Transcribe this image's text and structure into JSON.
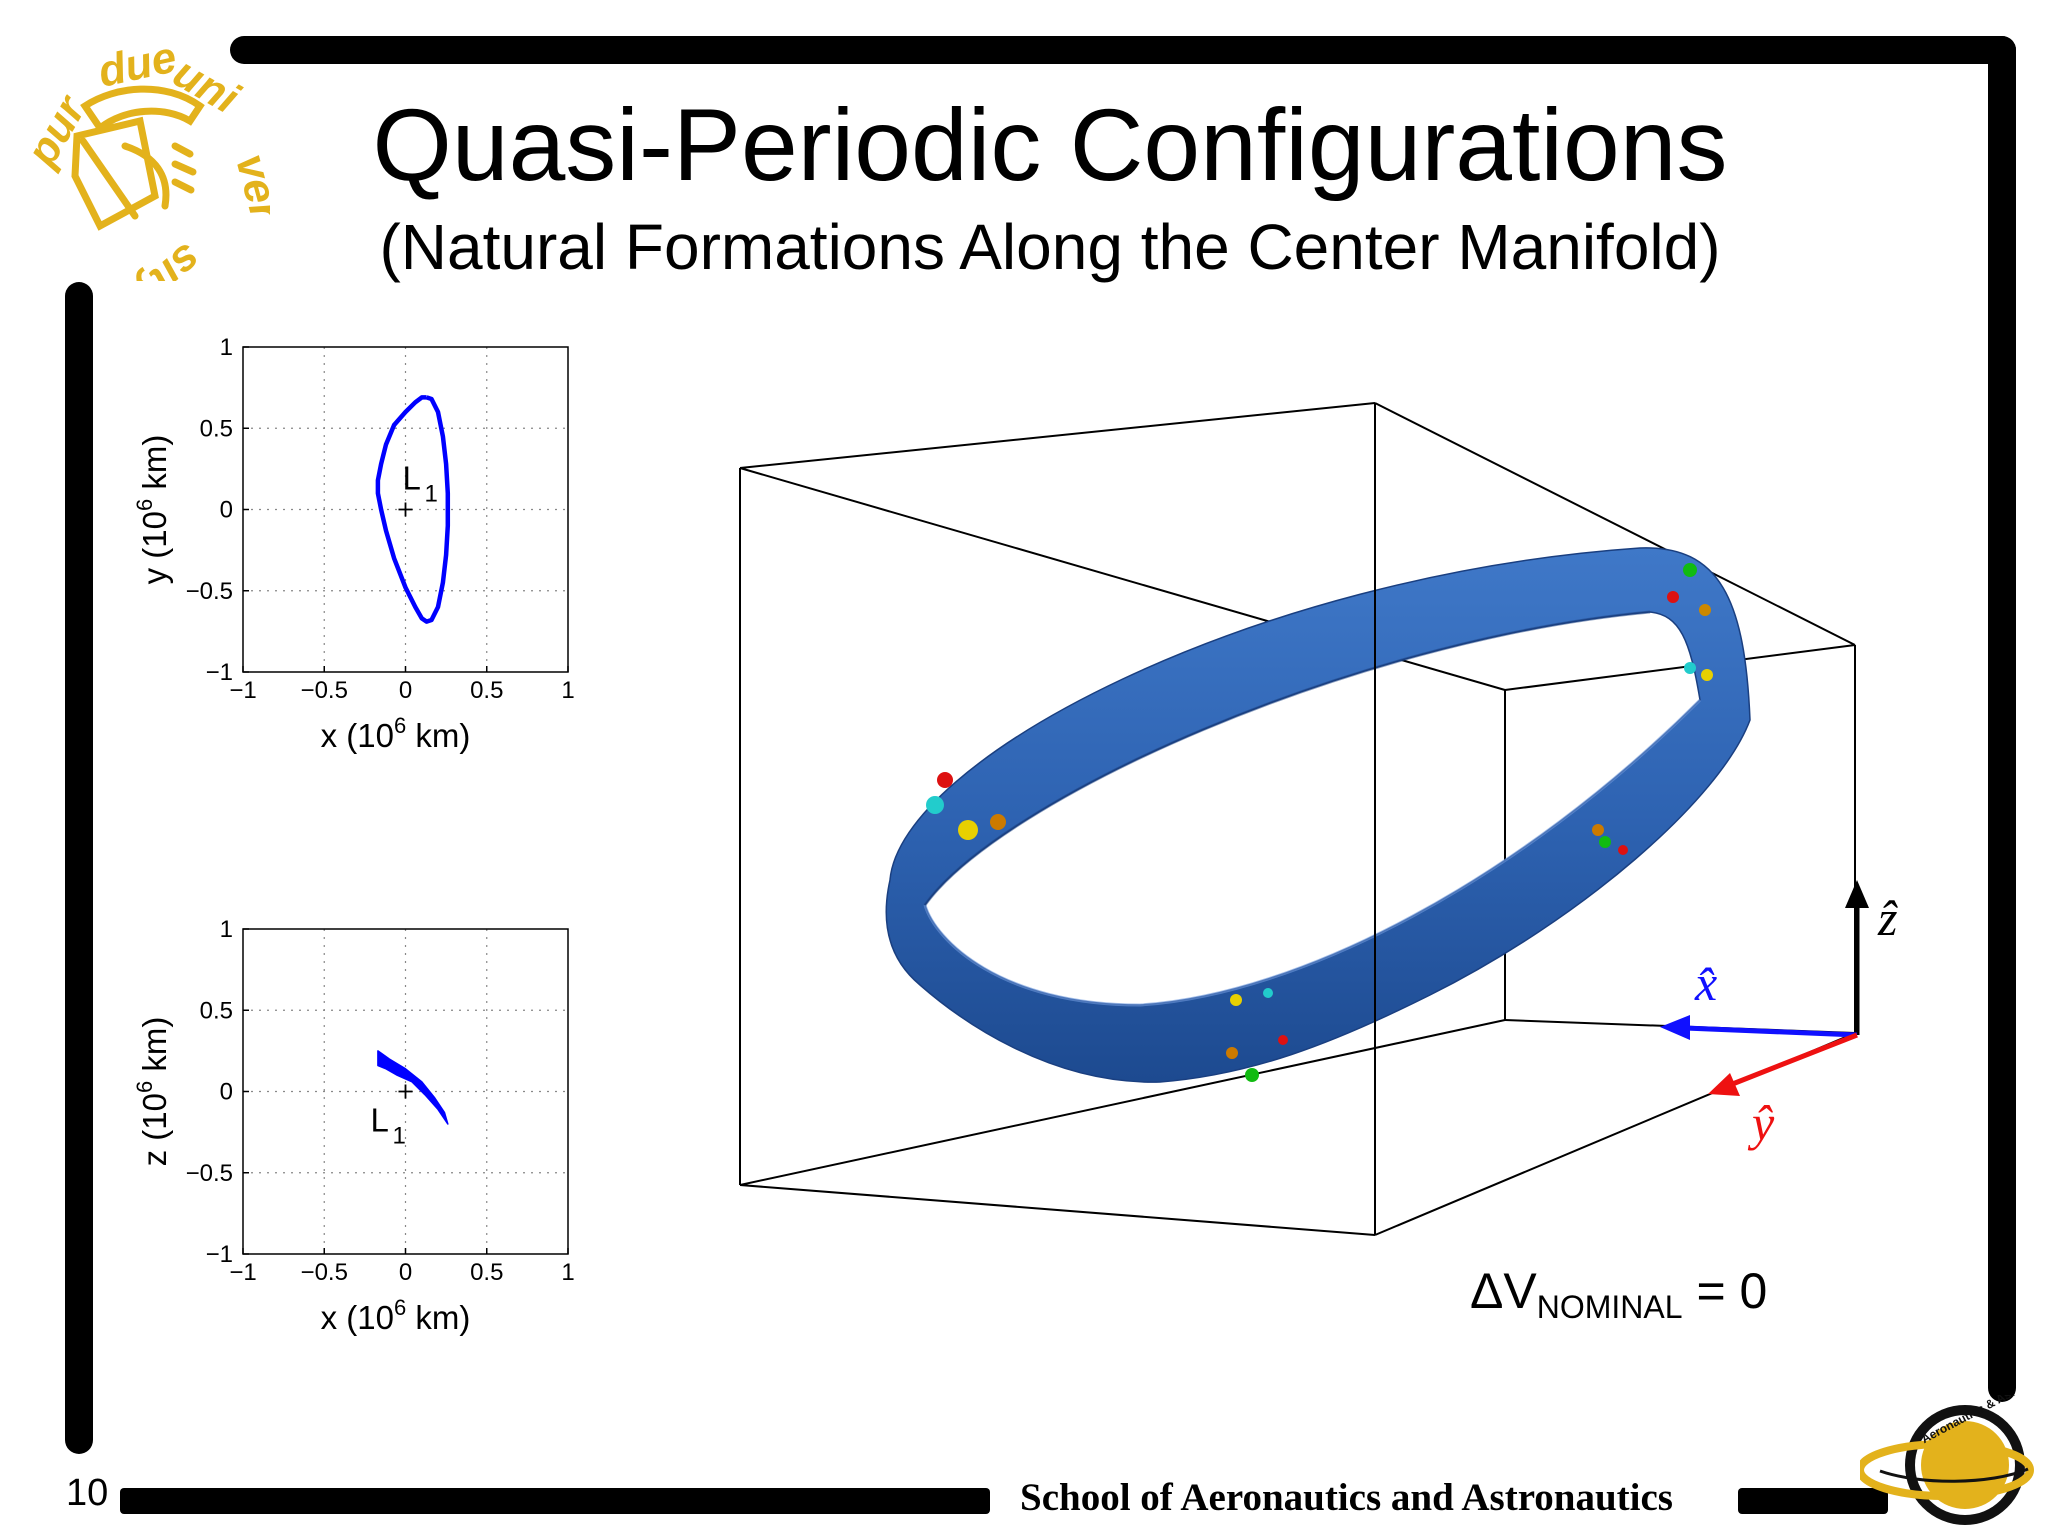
{
  "slide": {
    "title": "Quasi-Periodic Configurations",
    "subtitle": "(Natural Formations Along the Center Manifold)",
    "slide_number": "10",
    "footer_text": "School of Aeronautics and Astronautics",
    "logos": {
      "left": "PURDUE UNIVERSITY",
      "right": "Aeronautics & Astronautics"
    },
    "delta_v": {
      "prefix": "ΔV",
      "subscript": "NOMINAL",
      "suffix": " = 0"
    }
  },
  "colors": {
    "frame": "#000000",
    "orbit": "#0000ff",
    "torus": "#2f63b3",
    "logo": "#e3b21c",
    "x_axis": "#1010ff",
    "y_axis": "#ee1111",
    "z_axis": "#000000"
  },
  "axes3d": {
    "x_label": "x̂",
    "y_label": "ŷ",
    "z_label": "ẑ"
  },
  "chart_data": [
    {
      "type": "line",
      "name": "xy-projection",
      "xlabel_main": "x (10",
      "xlabel_exp": "6",
      "xlabel_tail": " km)",
      "ylabel_main": "y (10",
      "ylabel_exp": "6",
      "ylabel_tail": " km)",
      "xlim": [
        -1,
        1
      ],
      "ylim": [
        -1,
        1
      ],
      "xticks": [
        "−1",
        "−0.5",
        "0",
        "0.5",
        "1"
      ],
      "yticks": [
        "−1",
        "−0.5",
        "0",
        "0.5",
        "1"
      ],
      "grid": true,
      "marker": {
        "label": "L",
        "sub": "1",
        "x": 0,
        "y": 0
      },
      "series": [
        {
          "x": [
            0.13,
            0.16,
            0.2,
            0.23,
            0.25,
            0.26,
            0.26,
            0.25,
            0.23,
            0.2,
            0.16,
            0.13,
            0.1,
            0.06,
            0.0,
            -0.07,
            -0.12,
            -0.15,
            -0.17,
            -0.17,
            -0.15,
            -0.12,
            -0.07,
            0.0,
            0.06,
            0.1,
            0.13
          ],
          "y": [
            0.69,
            0.68,
            0.6,
            0.45,
            0.28,
            0.1,
            -0.1,
            -0.28,
            -0.45,
            -0.6,
            -0.68,
            -0.69,
            -0.67,
            -0.6,
            -0.48,
            -0.3,
            -0.13,
            0.0,
            0.1,
            0.18,
            0.28,
            0.4,
            0.52,
            0.6,
            0.66,
            0.69,
            0.69
          ]
        }
      ]
    },
    {
      "type": "area",
      "name": "xz-projection",
      "xlabel_main": "x (10",
      "xlabel_exp": "6",
      "xlabel_tail": " km)",
      "ylabel_main": "z (10",
      "ylabel_exp": "6",
      "ylabel_tail": " km)",
      "xlim": [
        -1,
        1
      ],
      "ylim": [
        -1,
        1
      ],
      "xticks": [
        "−1",
        "−0.5",
        "0",
        "0.5",
        "1"
      ],
      "yticks": [
        "−1",
        "−0.5",
        "0",
        "0.5",
        "1"
      ],
      "grid": true,
      "marker": {
        "label": "L",
        "sub": "1",
        "x": 0,
        "y": 0
      },
      "series": [
        {
          "x": [
            -0.17,
            -0.1,
            0.0,
            0.1,
            0.18,
            0.24,
            0.26,
            0.2,
            0.12,
            0.04,
            -0.05,
            -0.12,
            -0.17,
            -0.17
          ],
          "y": [
            0.25,
            0.2,
            0.14,
            0.06,
            -0.04,
            -0.13,
            -0.2,
            -0.11,
            -0.02,
            0.06,
            0.1,
            0.14,
            0.16,
            0.25
          ]
        }
      ]
    }
  ]
}
